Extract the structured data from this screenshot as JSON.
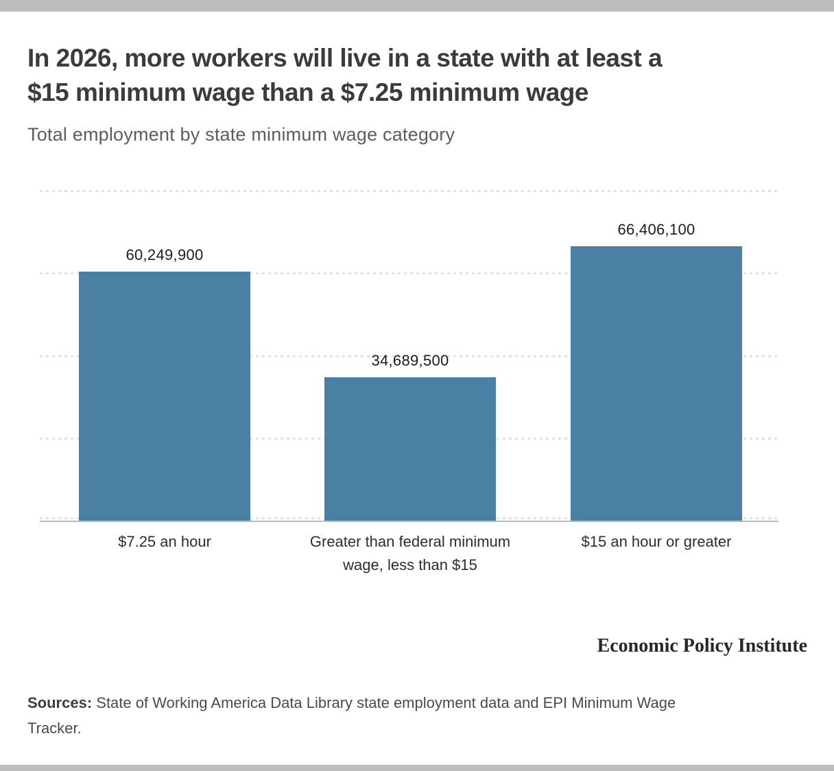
{
  "header": {
    "title_line1": "In 2026, more workers will live in a state with at least a",
    "title_line2": "$15 minimum wage than a $7.25 minimum wage",
    "subtitle": "Total employment by state minimum wage category"
  },
  "chart_data": {
    "type": "bar",
    "title": "In 2026, more workers will live in a state with at least a $15 minimum wage than a $7.25 minimum wage",
    "subtitle": "Total employment by state minimum wage category",
    "categories": [
      "$7.25 an hour",
      "Greater than federal minimum wage, less than $15",
      "$15 an hour or greater"
    ],
    "values": [
      60249900,
      34689500,
      66406100
    ],
    "value_labels": [
      "60,249,900",
      "34,689,500",
      "66,406,100"
    ],
    "xlabel": "",
    "ylabel": "",
    "ylim": [
      0,
      80000000
    ],
    "legend": "none",
    "gridlines": "horizontal-dotted",
    "bar_color": "#4a80a4"
  },
  "footer": {
    "brand": "Economic Policy Institute",
    "sources_label": "Sources:",
    "sources_line1": " State of Working America Data Library state employment data and EPI Minimum Wage",
    "sources_line2": "Tracker."
  }
}
